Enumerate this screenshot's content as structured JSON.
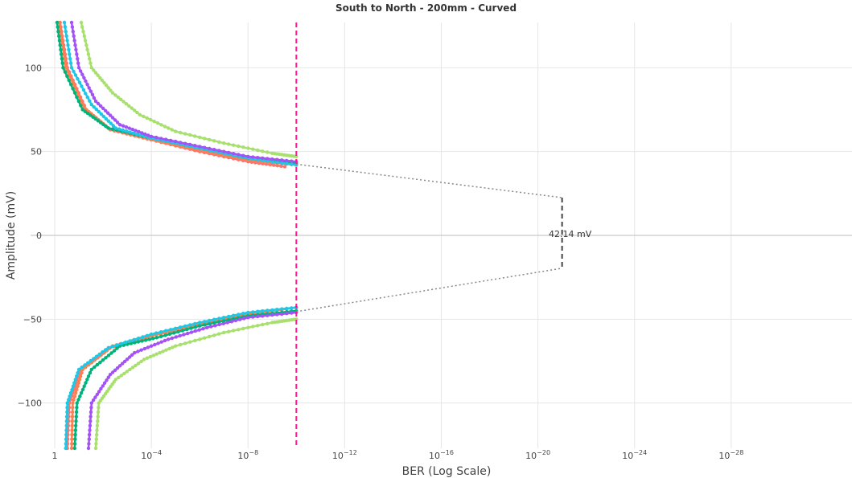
{
  "chart_data": {
    "type": "line",
    "title": "South to North - 200mm - Curved",
    "xlabel": "BER (Log Scale)",
    "ylabel": "Amplitude (mV)",
    "x_scale": "log",
    "x_reversed": true,
    "xlim": [
      10,
      1e-33
    ],
    "ylim": [
      -127,
      127
    ],
    "grid": true,
    "legend": "none",
    "x_ticks": [
      {
        "value": 1,
        "base": "1",
        "exp": ""
      },
      {
        "value": 0.0001,
        "base": "10",
        "exp": "−4"
      },
      {
        "value": 1e-08,
        "base": "10",
        "exp": "−8"
      },
      {
        "value": 1e-12,
        "base": "10",
        "exp": "−12"
      },
      {
        "value": 1e-16,
        "base": "10",
        "exp": "−16"
      },
      {
        "value": 1e-20,
        "base": "10",
        "exp": "−20"
      },
      {
        "value": 1e-24,
        "base": "10",
        "exp": "−24"
      },
      {
        "value": 1e-28,
        "base": "10",
        "exp": "−28"
      }
    ],
    "y_ticks": [
      {
        "value": 100,
        "label": "100"
      },
      {
        "value": 50,
        "label": "50"
      },
      {
        "value": 0,
        "label": "0"
      },
      {
        "value": -50,
        "label": "−50"
      },
      {
        "value": -100,
        "label": "−100"
      }
    ],
    "ber_target_line": {
      "x": 1e-10,
      "color": "#ff1493"
    },
    "eye_opening": {
      "label": "42.14 mV",
      "x": 1e-21,
      "y_top": 22.5,
      "y_bottom": -19.6,
      "upper_extrapolation": [
        [
          1e-10,
          42.5
        ],
        [
          1e-21,
          22.5
        ]
      ],
      "lower_extrapolation": [
        [
          1e-10,
          -45.5
        ],
        [
          1e-21,
          -19.6
        ]
      ]
    },
    "series": [
      {
        "color": "#f8766d",
        "upper": [
          [
            0.6,
            127
          ],
          [
            0.3,
            100
          ],
          [
            0.05,
            75
          ],
          [
            0.005,
            63
          ],
          [
            0.0001,
            57
          ],
          [
            1e-06,
            50
          ],
          [
            1e-08,
            44
          ],
          [
            3e-10,
            41
          ]
        ],
        "lower": [
          [
            0.3,
            -127
          ],
          [
            0.25,
            -100
          ],
          [
            0.08,
            -80
          ],
          [
            0.005,
            -67
          ],
          [
            0.0001,
            -60
          ],
          [
            1e-06,
            -53
          ],
          [
            1e-08,
            -47
          ],
          [
            1e-10,
            -43
          ]
        ]
      },
      {
        "color": "#ff7f50",
        "upper": [
          [
            0.65,
            127
          ],
          [
            0.35,
            100
          ],
          [
            0.06,
            76
          ],
          [
            0.006,
            64
          ],
          [
            0.0001,
            57
          ],
          [
            1e-06,
            51
          ],
          [
            1e-08,
            45
          ],
          [
            1e-10,
            42
          ]
        ],
        "lower": [
          [
            0.2,
            -127
          ],
          [
            0.18,
            -100
          ],
          [
            0.07,
            -80
          ],
          [
            0.004,
            -66
          ],
          [
            0.0001,
            -60
          ],
          [
            1e-06,
            -53
          ],
          [
            1e-08,
            -47
          ],
          [
            1e-10,
            -43
          ]
        ]
      },
      {
        "color": "#00b37a",
        "upper": [
          [
            0.8,
            127
          ],
          [
            0.45,
            100
          ],
          [
            0.07,
            75
          ],
          [
            0.006,
            64
          ],
          [
            0.0001,
            58
          ],
          [
            1e-06,
            52
          ],
          [
            1e-08,
            46
          ],
          [
            1e-10,
            43
          ]
        ],
        "lower": [
          [
            0.15,
            -127
          ],
          [
            0.12,
            -100
          ],
          [
            0.03,
            -80
          ],
          [
            0.002,
            -66
          ],
          [
            6e-05,
            -61
          ],
          [
            1e-06,
            -54
          ],
          [
            1e-08,
            -48
          ],
          [
            1e-10,
            -45
          ]
        ]
      },
      {
        "color": "#1fc7e6",
        "upper": [
          [
            0.4,
            127
          ],
          [
            0.2,
            100
          ],
          [
            0.03,
            78
          ],
          [
            0.003,
            64
          ],
          [
            0.0001,
            58
          ],
          [
            1e-06,
            52
          ],
          [
            1e-08,
            46
          ],
          [
            1e-10,
            42
          ]
        ],
        "lower": [
          [
            0.35,
            -127
          ],
          [
            0.3,
            -100
          ],
          [
            0.1,
            -80
          ],
          [
            0.006,
            -67
          ],
          [
            0.0001,
            -59
          ],
          [
            1e-06,
            -52
          ],
          [
            1e-08,
            -46
          ],
          [
            1e-10,
            -43
          ]
        ]
      },
      {
        "color": "#a352f5",
        "upper": [
          [
            0.2,
            127
          ],
          [
            0.1,
            100
          ],
          [
            0.02,
            80
          ],
          [
            0.002,
            66
          ],
          [
            0.0001,
            59
          ],
          [
            1e-06,
            53
          ],
          [
            1e-08,
            47
          ],
          [
            1e-10,
            44
          ]
        ],
        "lower": [
          [
            0.04,
            -127
          ],
          [
            0.03,
            -100
          ],
          [
            0.005,
            -83
          ],
          [
            0.0005,
            -70
          ],
          [
            2e-05,
            -62
          ],
          [
            5e-07,
            -55
          ],
          [
            1e-08,
            -49
          ],
          [
            1e-10,
            -46
          ]
        ]
      },
      {
        "color": "#a8e06e",
        "upper": [
          [
            0.08,
            127
          ],
          [
            0.03,
            100
          ],
          [
            0.004,
            85
          ],
          [
            0.0003,
            72
          ],
          [
            1e-05,
            62
          ],
          [
            1e-07,
            55
          ],
          [
            1e-09,
            49
          ],
          [
            1e-10,
            47
          ]
        ],
        "lower": [
          [
            0.02,
            -127
          ],
          [
            0.015,
            -100
          ],
          [
            0.003,
            -86
          ],
          [
            0.0002,
            -74
          ],
          [
            1e-05,
            -66
          ],
          [
            1e-07,
            -58
          ],
          [
            1e-09,
            -52
          ],
          [
            1e-10,
            -50
          ]
        ]
      }
    ]
  }
}
